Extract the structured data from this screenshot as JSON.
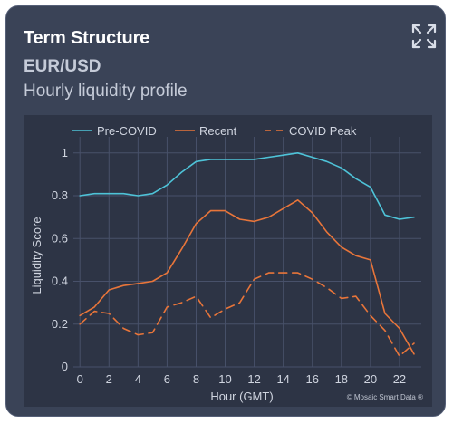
{
  "header": {
    "title": "Term Structure",
    "subtitle": "EUR/USD",
    "description": "Hourly liquidity profile"
  },
  "icons": {
    "expand": "expand-icon"
  },
  "colors": {
    "card_bg": "#3a4357",
    "plot_bg": "#2d3445",
    "pre_covid": "#4ec3d8",
    "recent": "#e8753a",
    "covid_peak": "#e8753a"
  },
  "chart_data": {
    "type": "line",
    "xlabel": "Hour (GMT)",
    "ylabel": "Liquidity Score",
    "xlim": [
      -0.2,
      23.5
    ],
    "ylim": [
      0,
      1.05
    ],
    "xticks": [
      "0",
      "2",
      "4",
      "6",
      "8",
      "10",
      "12",
      "14",
      "16",
      "18",
      "20",
      "22"
    ],
    "yticks": [
      "0",
      "0.2",
      "0.4",
      "0.6",
      "0.8",
      "1"
    ],
    "grid": true,
    "legend_position": "top",
    "x": [
      0,
      1,
      2,
      3,
      4,
      5,
      6,
      7,
      8,
      9,
      10,
      11,
      12,
      13,
      14,
      15,
      16,
      17,
      18,
      19,
      20,
      21,
      22,
      23
    ],
    "series": [
      {
        "name": "Pre-COVID",
        "style": "solid",
        "color": "#4ec3d8",
        "values": [
          0.8,
          0.81,
          0.81,
          0.81,
          0.8,
          0.81,
          0.85,
          0.91,
          0.96,
          0.97,
          0.97,
          0.97,
          0.97,
          0.98,
          0.99,
          1.0,
          0.98,
          0.96,
          0.93,
          0.88,
          0.84,
          0.71,
          0.69,
          0.7
        ]
      },
      {
        "name": "Recent",
        "style": "solid",
        "color": "#e8753a",
        "values": [
          0.24,
          0.28,
          0.36,
          0.38,
          0.39,
          0.4,
          0.44,
          0.55,
          0.67,
          0.73,
          0.73,
          0.69,
          0.68,
          0.7,
          0.74,
          0.78,
          0.72,
          0.63,
          0.56,
          0.52,
          0.5,
          0.25,
          0.18,
          0.06
        ]
      },
      {
        "name": "COVID Peak",
        "style": "dashed",
        "color": "#e8753a",
        "values": [
          0.2,
          0.26,
          0.25,
          0.18,
          0.15,
          0.16,
          0.28,
          0.3,
          0.33,
          0.23,
          0.27,
          0.3,
          0.41,
          0.44,
          0.44,
          0.44,
          0.41,
          0.37,
          0.32,
          0.33,
          0.24,
          0.17,
          0.05,
          0.11
        ]
      }
    ],
    "watermark": "© Mosaic Smart Data ®"
  }
}
